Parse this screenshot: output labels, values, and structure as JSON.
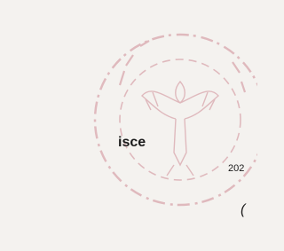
{
  "fragment": {
    "word": "isce",
    "year": "202",
    "paren": "("
  }
}
